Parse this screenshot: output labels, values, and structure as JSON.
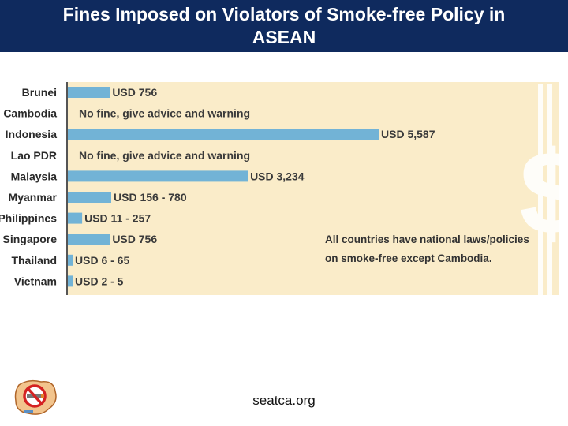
{
  "header": {
    "title_line1": "Fines Imposed on Violators of Smoke-free Policy in",
    "title_line2": "ASEAN"
  },
  "chart_data": {
    "type": "bar",
    "orientation": "horizontal",
    "title": "Fines Imposed on Violators of Smoke-free Policy in ASEAN",
    "categories": [
      "Brunei",
      "Cambodia",
      "Indonesia",
      "Lao PDR",
      "Malaysia",
      "Myanmar",
      "Philippines",
      "Singapore",
      "Thailand",
      "Vietnam"
    ],
    "values": [
      756,
      0,
      5587,
      0,
      3234,
      780,
      257,
      756,
      65,
      5
    ],
    "labels": [
      "USD 756",
      "No fine, give advice and warning",
      "USD 5,587",
      "No fine, give advice and warning",
      "USD 3,234",
      "USD 156 - 780",
      "USD 11 - 257",
      "USD 756",
      "USD 6 - 65",
      "USD 2 - 5"
    ],
    "note_line1": "All countries have national laws/policies",
    "note_line2": "on smoke-free except Cambodia.",
    "bar_color": "#72b3d6",
    "background_color": "#faecc9",
    "grid": false,
    "legend": false
  },
  "footer": {
    "source": "seatca.org"
  }
}
